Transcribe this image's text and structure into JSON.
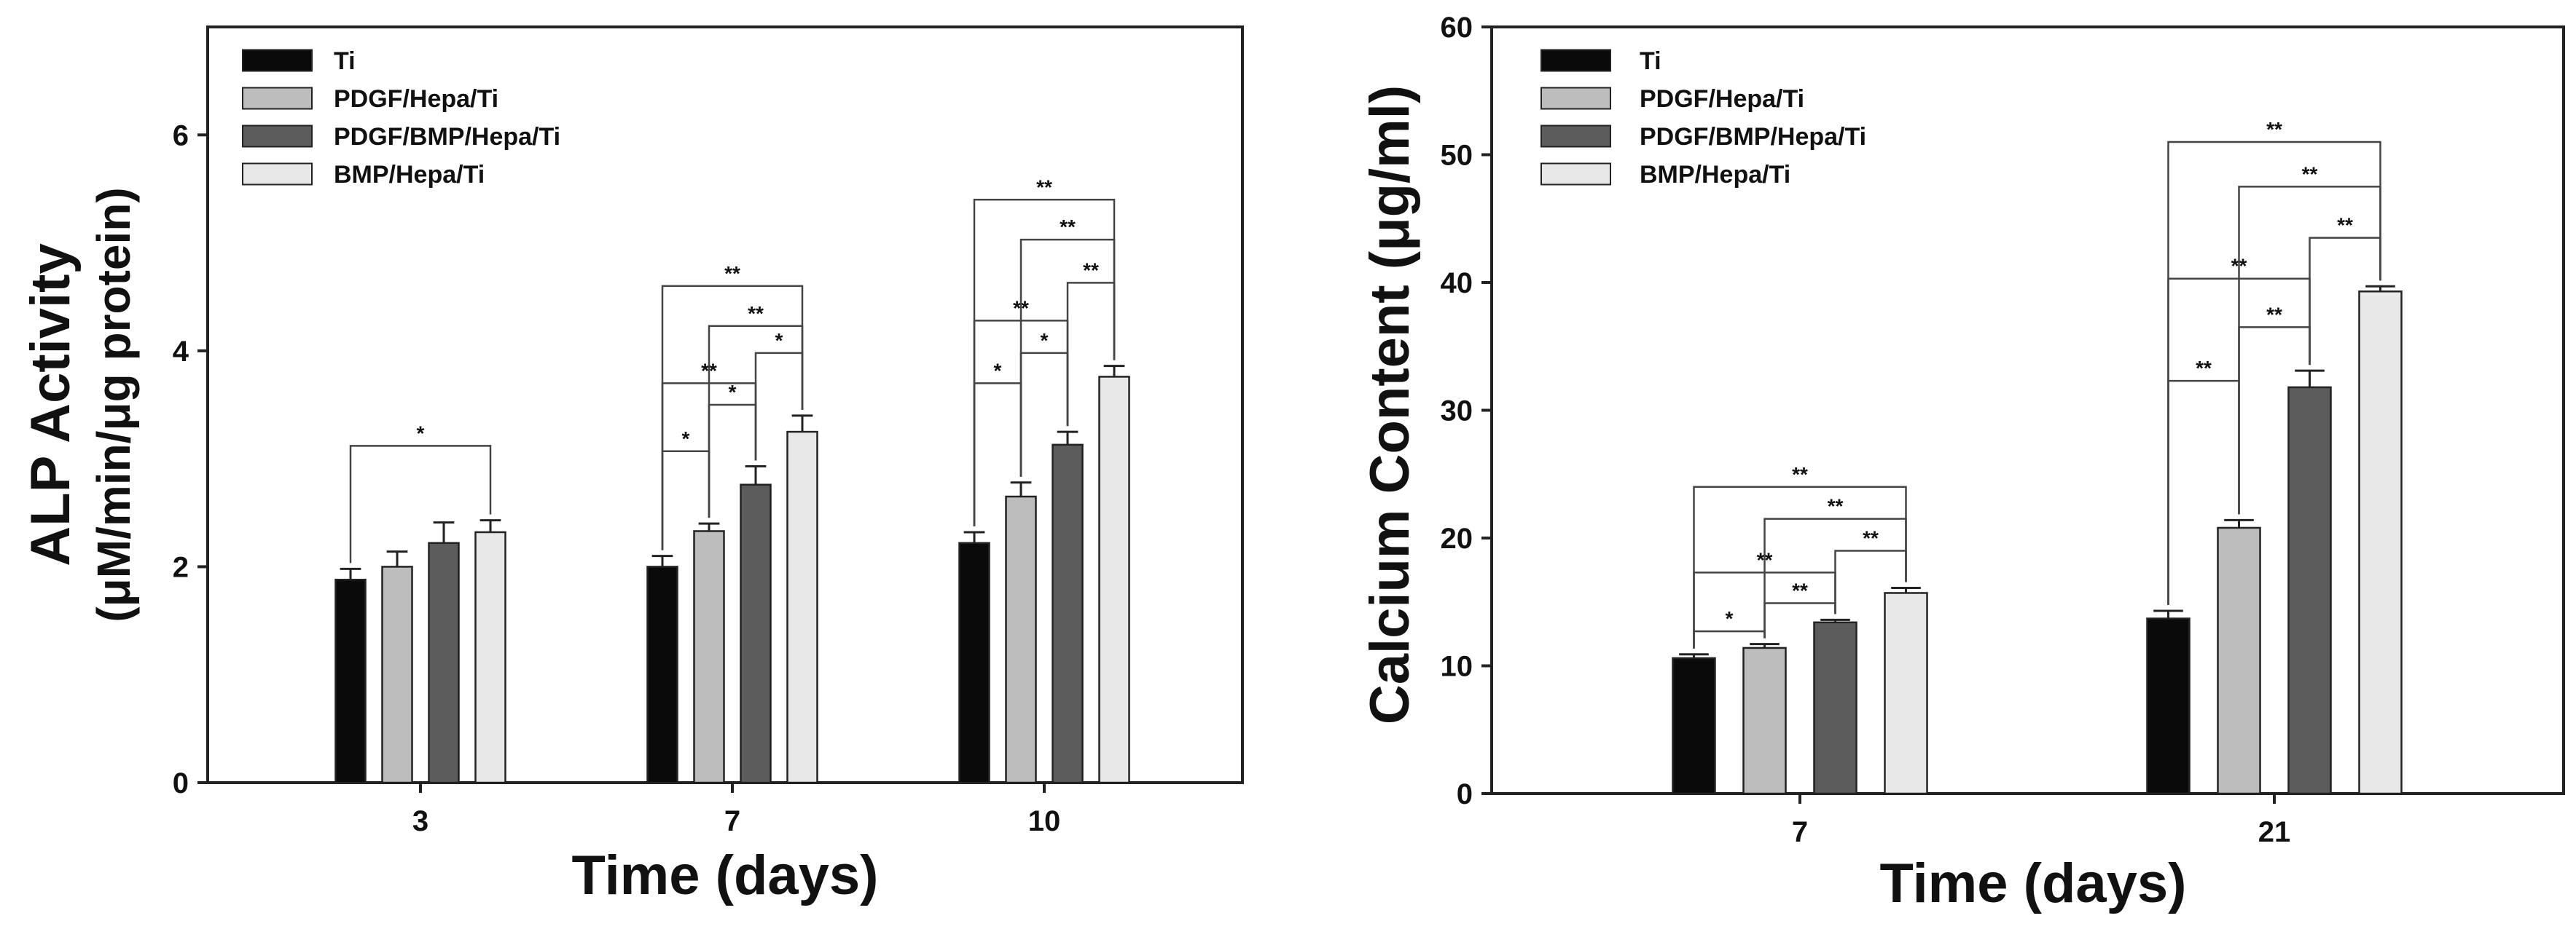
{
  "chart_data": [
    {
      "type": "bar",
      "title": "",
      "xlabel": "Time (days)",
      "ylabel_line1": "ALP Activity",
      "ylabel_line2": "(μM/min/μg protein)",
      "ylim": [
        0,
        7
      ],
      "yticks": [
        0,
        2,
        4,
        6
      ],
      "grid": false,
      "legend_position": "top-left",
      "categories": [
        "3",
        "7",
        "10"
      ],
      "series": [
        {
          "name": "Ti",
          "color": "#0a0a0a",
          "values": [
            1.88,
            2.0,
            2.22
          ],
          "errors": [
            0.1,
            0.1,
            0.1
          ]
        },
        {
          "name": "PDGF/Hepa/Ti",
          "color": "#bdbdbd",
          "values": [
            2.0,
            2.33,
            2.65
          ],
          "errors": [
            0.14,
            0.07,
            0.13
          ]
        },
        {
          "name": "PDGF/BMP/Hepa/Ti",
          "color": "#5c5c5c",
          "values": [
            2.22,
            2.76,
            3.13
          ],
          "errors": [
            0.19,
            0.17,
            0.12
          ]
        },
        {
          "name": "BMP/Hepa/Ti",
          "color": "#e8e8e8",
          "values": [
            2.32,
            3.25,
            3.76
          ],
          "errors": [
            0.11,
            0.15,
            0.1
          ]
        }
      ],
      "significance": [
        {
          "category": 0,
          "from": 0,
          "to": 3,
          "y": 3.12,
          "label": "*"
        },
        {
          "category": 1,
          "from": 0,
          "to": 1,
          "y": 3.07,
          "label": "*"
        },
        {
          "category": 1,
          "from": 0,
          "to": 2,
          "y": 3.7,
          "label": "**"
        },
        {
          "category": 1,
          "from": 0,
          "to": 3,
          "y": 4.6,
          "label": "**"
        },
        {
          "category": 1,
          "from": 1,
          "to": 2,
          "y": 3.5,
          "label": "*"
        },
        {
          "category": 1,
          "from": 1,
          "to": 3,
          "y": 4.23,
          "label": "**"
        },
        {
          "category": 1,
          "from": 2,
          "to": 3,
          "y": 3.98,
          "label": "*"
        },
        {
          "category": 2,
          "from": 0,
          "to": 1,
          "y": 3.7,
          "label": "*"
        },
        {
          "category": 2,
          "from": 0,
          "to": 2,
          "y": 4.28,
          "label": "**"
        },
        {
          "category": 2,
          "from": 0,
          "to": 3,
          "y": 5.4,
          "label": "**"
        },
        {
          "category": 2,
          "from": 1,
          "to": 2,
          "y": 3.98,
          "label": "*"
        },
        {
          "category": 2,
          "from": 1,
          "to": 3,
          "y": 5.03,
          "label": "**"
        },
        {
          "category": 2,
          "from": 2,
          "to": 3,
          "y": 4.63,
          "label": "**"
        }
      ]
    },
    {
      "type": "bar",
      "title": "",
      "xlabel": "Time (days)",
      "ylabel_line1": "Calcium Content (μg/ml)",
      "ylabel_line2": "",
      "ylim": [
        0,
        60
      ],
      "yticks": [
        0,
        10,
        20,
        30,
        40,
        50,
        60
      ],
      "grid": false,
      "legend_position": "top-left",
      "categories": [
        "7",
        "21"
      ],
      "series": [
        {
          "name": "Ti",
          "color": "#0a0a0a",
          "values": [
            10.6,
            13.7
          ],
          "errors": [
            0.3,
            0.6
          ]
        },
        {
          "name": "PDGF/Hepa/Ti",
          "color": "#bdbdbd",
          "values": [
            11.4,
            20.8
          ],
          "errors": [
            0.3,
            0.6
          ]
        },
        {
          "name": "PDGF/BMP/Hepa/Ti",
          "color": "#5c5c5c",
          "values": [
            13.4,
            31.8
          ],
          "errors": [
            0.2,
            1.3
          ]
        },
        {
          "name": "BMP/Hepa/Ti",
          "color": "#e8e8e8",
          "values": [
            15.7,
            39.3
          ],
          "errors": [
            0.4,
            0.4
          ]
        }
      ],
      "significance": [
        {
          "category": 0,
          "from": 0,
          "to": 1,
          "y": 12.7,
          "label": "*"
        },
        {
          "category": 0,
          "from": 0,
          "to": 2,
          "y": 17.3,
          "label": "**"
        },
        {
          "category": 0,
          "from": 0,
          "to": 3,
          "y": 24.0,
          "label": "**"
        },
        {
          "category": 0,
          "from": 1,
          "to": 2,
          "y": 14.9,
          "label": "**"
        },
        {
          "category": 0,
          "from": 1,
          "to": 3,
          "y": 21.5,
          "label": "**"
        },
        {
          "category": 0,
          "from": 2,
          "to": 3,
          "y": 19.0,
          "label": "**"
        },
        {
          "category": 1,
          "from": 0,
          "to": 1,
          "y": 32.3,
          "label": "**"
        },
        {
          "category": 1,
          "from": 0,
          "to": 2,
          "y": 40.3,
          "label": "**"
        },
        {
          "category": 1,
          "from": 0,
          "to": 3,
          "y": 51.0,
          "label": "**"
        },
        {
          "category": 1,
          "from": 1,
          "to": 2,
          "y": 36.5,
          "label": "**"
        },
        {
          "category": 1,
          "from": 1,
          "to": 3,
          "y": 47.5,
          "label": "**"
        },
        {
          "category": 1,
          "from": 2,
          "to": 3,
          "y": 43.5,
          "label": "**"
        }
      ]
    }
  ]
}
